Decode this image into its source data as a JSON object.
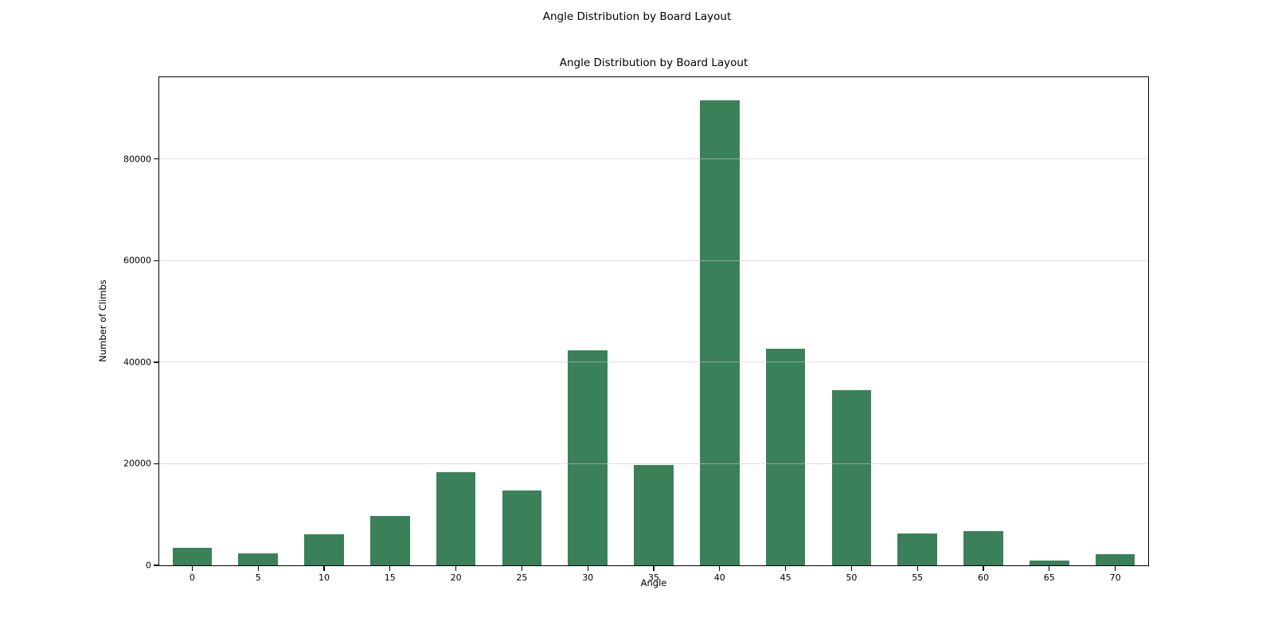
{
  "figure": {
    "suptitle": "Angle Distribution by Board Layout"
  },
  "chart_data": {
    "type": "bar",
    "title": "Angle Distribution by Board Layout",
    "xlabel": "Angle",
    "ylabel": "Number of Climbs",
    "categories": [
      "0",
      "5",
      "10",
      "15",
      "20",
      "25",
      "30",
      "35",
      "40",
      "45",
      "50",
      "55",
      "60",
      "65",
      "70"
    ],
    "values": [
      3400,
      2400,
      6100,
      9800,
      18300,
      14700,
      42400,
      19700,
      91600,
      42700,
      34500,
      6300,
      6700,
      1000,
      2200
    ],
    "yticks": [
      0,
      20000,
      40000,
      60000,
      80000
    ],
    "ylim": [
      0,
      96100
    ],
    "grid": "horizontal-y-only",
    "legend": "none",
    "bar_color": "#3A8159",
    "gridline_color": "#e2e2e2",
    "bar_width_fraction": 0.6
  }
}
